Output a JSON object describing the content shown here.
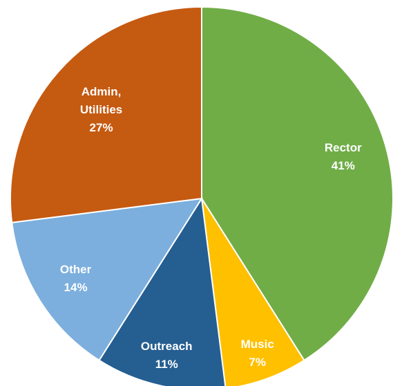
{
  "chart_data": {
    "type": "pie",
    "categories": [
      "Rector",
      "Music",
      "Outreach",
      "Other",
      "Admin, Utilities"
    ],
    "values": [
      41,
      7,
      11,
      14,
      27
    ],
    "value_labels": [
      "41%",
      "7%",
      "11%",
      "14%",
      "27%"
    ],
    "colors": [
      "#70ad47",
      "#ffc000",
      "#255e91",
      "#7cafdd",
      "#c55a11"
    ]
  }
}
